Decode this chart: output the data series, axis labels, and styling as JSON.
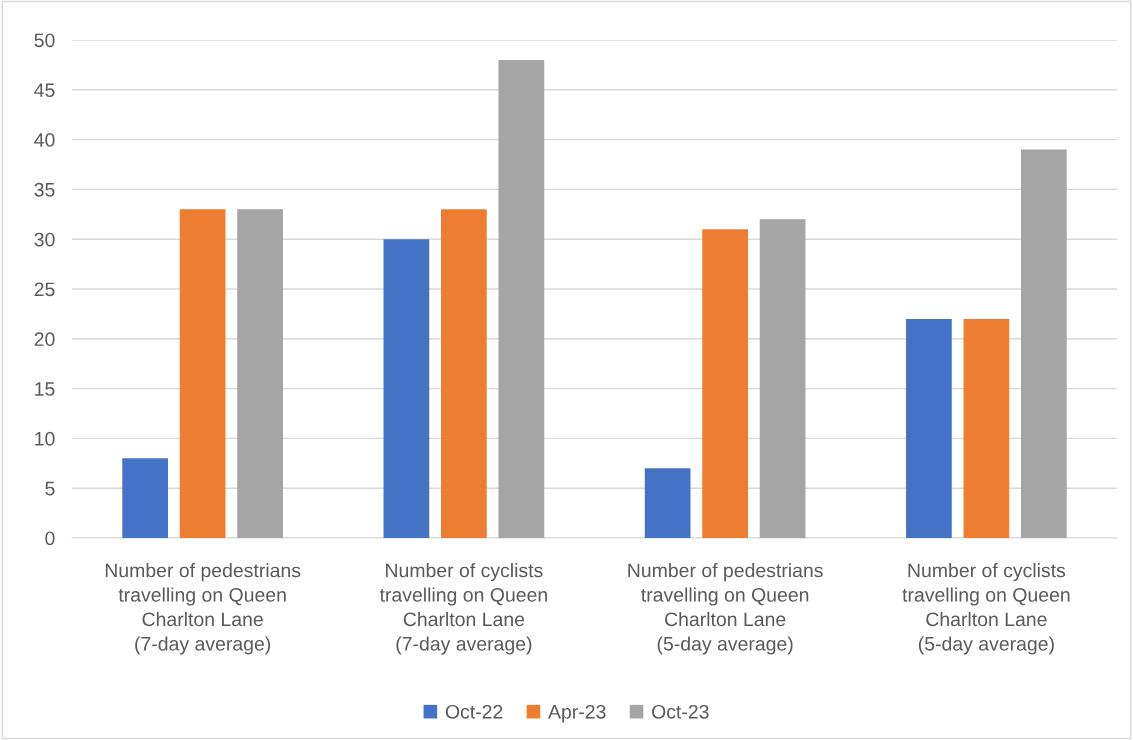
{
  "chart_data": {
    "type": "bar",
    "categories": [
      "Number of pedestrians\ntravelling on Queen\nCharlton Lane\n(7-day average)",
      "Number of cyclists\ntravelling on Queen\nCharlton Lane\n(7-day average)",
      "Number of pedestrians\ntravelling on Queen\nCharlton Lane\n(5-day average)",
      "Number of cyclists\ntravelling on Queen\nCharlton Lane\n(5-day average)"
    ],
    "series": [
      {
        "name": "Oct-22",
        "color": "#4472c4",
        "values": [
          8,
          30,
          7,
          22
        ]
      },
      {
        "name": "Apr-23",
        "color": "#ed7d31",
        "values": [
          33,
          33,
          31,
          22
        ]
      },
      {
        "name": "Oct-23",
        "color": "#a5a5a5",
        "values": [
          33,
          48,
          32,
          39
        ]
      }
    ],
    "ylim": [
      0,
      50
    ],
    "yticks": [
      0,
      5,
      10,
      15,
      20,
      25,
      30,
      35,
      40,
      45,
      50
    ],
    "grid": "y",
    "legend": "bottom"
  }
}
